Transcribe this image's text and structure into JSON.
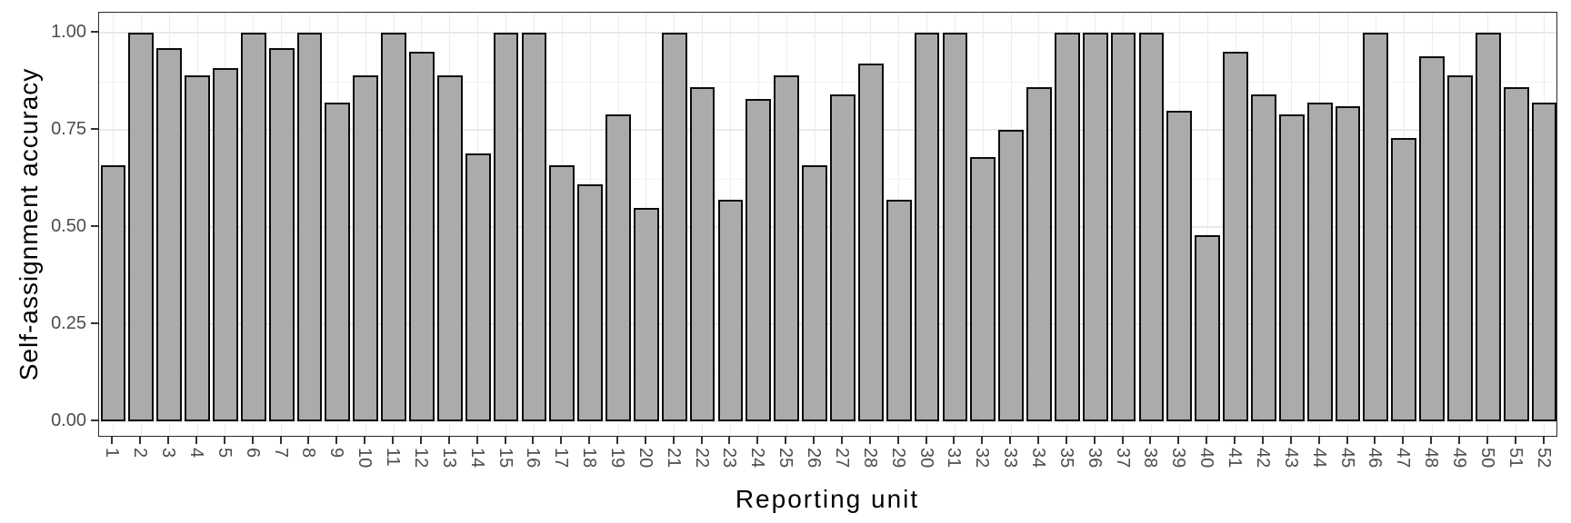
{
  "chart_data": {
    "type": "bar",
    "title": "",
    "xlabel": "Reporting unit",
    "ylabel": "Self-assignment accuracy",
    "categories": [
      "1",
      "2",
      "3",
      "4",
      "5",
      "6",
      "7",
      "8",
      "9",
      "10",
      "11",
      "12",
      "13",
      "14",
      "15",
      "16",
      "17",
      "18",
      "19",
      "20",
      "21",
      "22",
      "23",
      "24",
      "25",
      "26",
      "27",
      "28",
      "29",
      "30",
      "31",
      "32",
      "33",
      "34",
      "35",
      "36",
      "37",
      "38",
      "39",
      "40",
      "41",
      "42",
      "43",
      "44",
      "45",
      "46",
      "47",
      "48",
      "49",
      "50",
      "51",
      "52"
    ],
    "values": [
      0.66,
      1.0,
      0.96,
      0.89,
      0.91,
      1.0,
      0.96,
      1.0,
      0.82,
      0.89,
      1.0,
      0.95,
      0.89,
      0.69,
      1.0,
      1.0,
      0.66,
      0.61,
      0.79,
      0.55,
      1.0,
      0.86,
      0.57,
      0.83,
      0.89,
      0.66,
      0.84,
      0.92,
      0.57,
      1.0,
      1.0,
      0.68,
      0.75,
      0.86,
      1.0,
      1.0,
      1.0,
      1.0,
      0.8,
      0.48,
      0.95,
      0.84,
      0.79,
      0.82,
      0.81,
      1.0,
      0.73,
      0.94,
      0.89,
      1.0,
      0.86,
      0.82
    ],
    "ylim": [
      0,
      1
    ],
    "yticks": [
      0,
      0.25,
      0.5,
      0.75,
      1
    ],
    "ytick_labels": [
      "0.00",
      "0.25",
      "0.50",
      "0.75",
      "1.00"
    ],
    "minor_yticks": [
      0.125,
      0.375,
      0.625,
      0.875
    ],
    "grid": "major horizontal and vertical light grey, minor horizontal lighter; white panel background",
    "legend": "none",
    "x_tick_label_rotation_deg": 90,
    "colors": {
      "bar_fill": "#ABABAB",
      "bar_stroke": "#0B0B0B",
      "grid_major": "#E9E9E9",
      "grid_minor": "#F3F3F3",
      "panel_border": "#2A2A2A",
      "axis_text": "#4D4D4D",
      "axis_title": "#000000",
      "background": "#FFFFFF"
    }
  }
}
